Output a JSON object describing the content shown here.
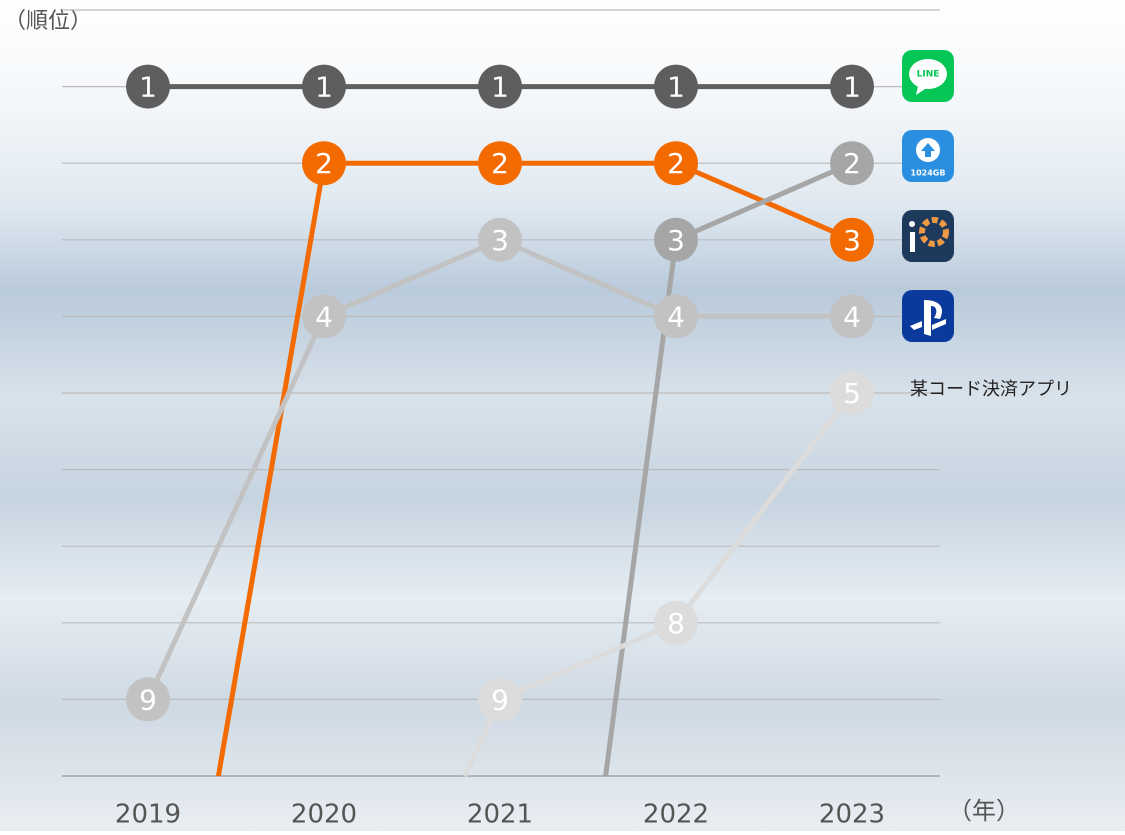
{
  "chart_data": {
    "type": "bump",
    "y_label": "（順位）",
    "x_label": "（年）",
    "categories": [
      "2019",
      "2020",
      "2021",
      "2022",
      "2023"
    ],
    "ylim": [
      10,
      0
    ],
    "yticks": [
      0,
      1,
      2,
      3,
      4,
      5,
      6,
      7,
      8,
      9,
      10
    ],
    "grid": true,
    "series": [
      {
        "color": "#5e5e5e",
        "values": [
          1,
          1,
          1,
          1,
          1
        ],
        "icon_text": "LINE"
      },
      {
        "color": "#f26a00",
        "values": [
          null,
          2,
          2,
          2,
          3
        ]
      },
      {
        "color": "#a6a6a6",
        "values": [
          null,
          null,
          null,
          3,
          2
        ],
        "icon_text": "1024GB"
      },
      {
        "color": "#c2c2c2",
        "values": [
          9,
          4,
          3,
          4,
          4
        ]
      },
      {
        "name": "某コード決済アプリ",
        "color": "#dcdcdc",
        "values": [
          null,
          null,
          9,
          8,
          5
        ]
      }
    ]
  }
}
